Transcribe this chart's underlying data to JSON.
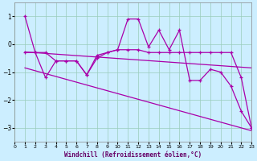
{
  "title": "",
  "xlabel": "Windchill (Refroidissement éolien,°C)",
  "bg_color": "#cceeff",
  "line_color": "#aa00aa",
  "xlim": [
    0,
    23
  ],
  "ylim": [
    -3.5,
    1.5
  ],
  "yticks": [
    -3,
    -2,
    -1,
    0,
    1
  ],
  "xticks": [
    0,
    1,
    2,
    3,
    4,
    5,
    6,
    7,
    8,
    9,
    10,
    11,
    12,
    13,
    14,
    15,
    16,
    17,
    18,
    19,
    20,
    21,
    22,
    23
  ],
  "series1_x": [
    1,
    2,
    3,
    4,
    5,
    6,
    7,
    8,
    9,
    10,
    11,
    12,
    13,
    14,
    15,
    16,
    17,
    18,
    19,
    20,
    21,
    22,
    23
  ],
  "series1_y": [
    1.0,
    -0.3,
    -0.3,
    -0.6,
    -0.6,
    -0.6,
    -1.1,
    -0.5,
    -0.3,
    -0.2,
    0.9,
    0.9,
    -0.1,
    0.5,
    -0.2,
    0.5,
    -1.3,
    -1.3,
    -0.9,
    -1.0,
    -1.5,
    -2.4,
    -3.0
  ],
  "series2_x": [
    1,
    2,
    3,
    4,
    5,
    6,
    7,
    8,
    9,
    10,
    11,
    12,
    13,
    14,
    15,
    16,
    17,
    18,
    19,
    20,
    21,
    22,
    23
  ],
  "series2_y": [
    -0.3,
    -0.3,
    -1.2,
    -0.6,
    -0.6,
    -0.6,
    -1.1,
    -0.4,
    -0.3,
    -0.2,
    -0.2,
    -0.2,
    -0.3,
    -0.3,
    -0.3,
    -0.3,
    -0.3,
    -0.3,
    -0.3,
    -0.3,
    -0.3,
    -1.2,
    -3.0
  ],
  "trend1_x": [
    1,
    23
  ],
  "trend1_y": [
    -0.28,
    -0.85
  ],
  "trend2_x": [
    1,
    23
  ],
  "trend2_y": [
    -0.85,
    -3.1
  ]
}
